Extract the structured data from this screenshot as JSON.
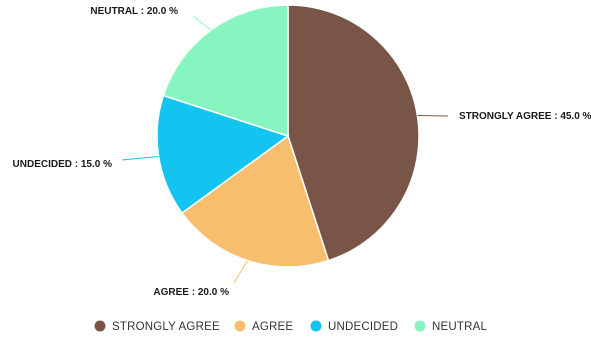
{
  "chart_data": {
    "type": "pie",
    "title": "",
    "categories": [
      "STRONGLY AGREE",
      "AGREE",
      "UNDECIDED",
      "NEUTRAL"
    ],
    "values": [
      45.0,
      20.0,
      15.0,
      20.0
    ],
    "labels": [
      "STRONGLY AGREE : 45.0 %",
      "AGREE : 20.0 %",
      "UNDECIDED : 15.0 %",
      "NEUTRAL : 20.0 %"
    ],
    "colors": [
      "#795548",
      "#f7be6d",
      "#12c4ef",
      "#86f5c0"
    ],
    "start_angle": "top (12 o'clock), clockwise",
    "legend": {
      "position": "bottom-center",
      "items": [
        "STRONGLY AGREE",
        "AGREE",
        "UNDECIDED",
        "NEUTRAL"
      ]
    }
  }
}
